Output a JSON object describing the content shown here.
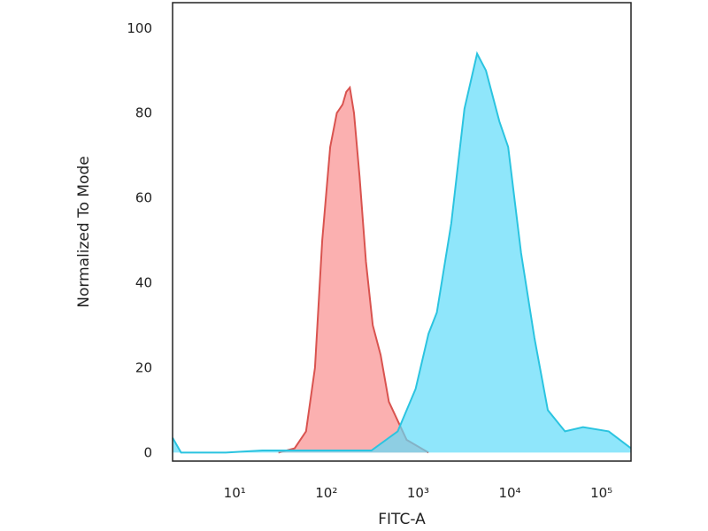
{
  "chart_data": {
    "type": "histogram-overlay",
    "x_label": "FITC-A",
    "y_label": "Normalized To Mode",
    "xscale": "log",
    "xlim": [
      2.1,
      210000
    ],
    "ylim": [
      -2,
      106
    ],
    "xticks": [
      {
        "value": 10,
        "label": "10¹"
      },
      {
        "value": 100,
        "label": "10²"
      },
      {
        "value": 1000,
        "label": "10³"
      },
      {
        "value": 10000,
        "label": "10⁴"
      },
      {
        "value": 100000,
        "label": "10⁵"
      }
    ],
    "yticks": [
      0,
      20,
      40,
      60,
      80,
      100
    ],
    "series": [
      {
        "color": "#d9534f",
        "fill": "#f98f8f",
        "x": [
          30,
          45,
          60,
          75,
          90,
          110,
          130,
          150,
          165,
          180,
          200,
          230,
          270,
          320,
          390,
          480,
          750,
          1300
        ],
        "values": [
          0,
          1,
          5,
          20,
          50,
          72,
          80,
          82,
          85,
          86,
          80,
          65,
          45,
          30,
          23,
          12,
          3,
          0
        ]
      },
      {
        "color": "#2bc4e0",
        "fill": "#5fdcfa",
        "x": [
          2.1,
          2.6,
          8,
          20,
          60,
          310,
          600,
          940,
          1300,
          1600,
          2300,
          3200,
          4400,
          5500,
          7700,
          9600,
          13300,
          18600,
          26000,
          40000,
          63000,
          120000,
          210000
        ],
        "values": [
          3.5,
          0,
          0,
          0.5,
          0.5,
          0.5,
          5,
          15,
          28,
          33,
          54,
          81,
          94,
          90,
          78,
          72,
          47,
          27,
          10,
          5,
          6,
          5,
          1
        ]
      }
    ]
  }
}
